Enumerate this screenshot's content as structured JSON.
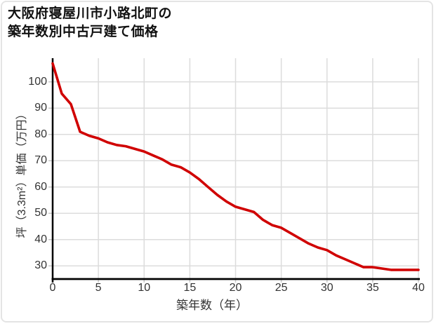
{
  "page": {
    "background": "#ffffff",
    "border_color": "#e4e4e4"
  },
  "title": {
    "line1": "大阪府寝屋川市小路北町の",
    "line2": "築年数別中古戸建て価格"
  },
  "chart_data": {
    "type": "line",
    "title": "大阪府寝屋川市小路北町の築年数別中古戸建て価格",
    "xlabel": "築年数（年）",
    "ylabel": "坪（3.3m²）単価（万円）",
    "x": [
      0,
      1,
      2,
      3,
      4,
      5,
      6,
      7,
      8,
      9,
      10,
      11,
      12,
      13,
      14,
      15,
      16,
      17,
      18,
      19,
      20,
      21,
      22,
      23,
      24,
      25,
      26,
      27,
      28,
      29,
      30,
      31,
      32,
      33,
      34,
      35,
      36,
      37,
      38,
      39,
      40
    ],
    "values": [
      107,
      95.5,
      91.5,
      81,
      79.5,
      78.5,
      77,
      76,
      75.5,
      74.5,
      73.5,
      72,
      70.5,
      68.5,
      67.5,
      65.5,
      63,
      60,
      57,
      54.5,
      52.5,
      51.5,
      50.5,
      47.5,
      45.5,
      44.5,
      42.5,
      40.5,
      38.5,
      37,
      36,
      34,
      32.5,
      31,
      29.5,
      29.5,
      29,
      28.5,
      28.5,
      28.5,
      28.5
    ],
    "x_ticks": [
      0,
      5,
      10,
      15,
      20,
      25,
      30,
      35,
      40
    ],
    "y_ticks": [
      30,
      40,
      50,
      60,
      70,
      80,
      90,
      100
    ],
    "xlim": [
      0,
      40
    ],
    "ylim": [
      25,
      109
    ],
    "grid": true,
    "legend": "none",
    "line_color": "#d00000",
    "grid_color": "#dcdcdc",
    "tick_color": "#c8c8c8",
    "axis_color": "#000000"
  }
}
